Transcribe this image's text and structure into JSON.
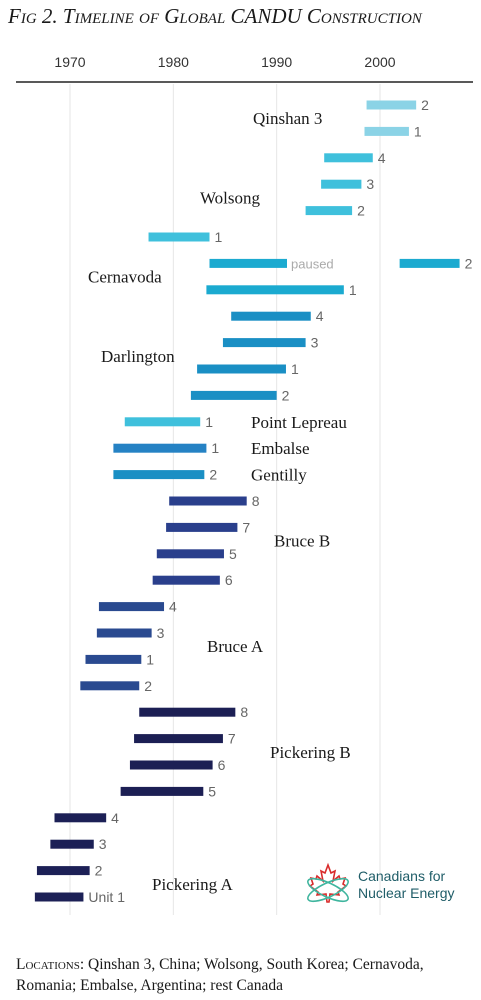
{
  "chart_data": {
    "type": "timeline",
    "title": "Fig 2. Timeline of Global CANDU Construction",
    "x_ticks": [
      1970,
      1980,
      1990,
      2000
    ],
    "xlim": [
      1964,
      2009
    ],
    "colors": {
      "qinshan": "#8bd3e6",
      "wolsong": "#3fc0dc",
      "cernavoda": "#1baad0",
      "darlington": "#1a8fc4",
      "lepreau_group": "#2582c4",
      "bruce_b": "#2a3f8c",
      "bruce_a": "#2a4a90",
      "pickering_b": "#1c1f54",
      "pickering_a": "#1c2056"
    },
    "plants": [
      {
        "name": "Qinshan 3",
        "color": "qinshan",
        "units": [
          {
            "label": "2",
            "start": 1998.7,
            "end": 2003.5
          },
          {
            "label": "1",
            "start": 1998.5,
            "end": 2002.8
          }
        ]
      },
      {
        "name": "Wolsong",
        "color": "wolsong",
        "units": [
          {
            "label": "4",
            "start": 1994.6,
            "end": 1999.3
          },
          {
            "label": "3",
            "start": 1994.3,
            "end": 1998.2
          },
          {
            "label": "2",
            "start": 1992.8,
            "end": 1997.3
          },
          {
            "label": "1",
            "start": 1977.6,
            "end": 1983.5
          }
        ]
      },
      {
        "name": "Cernavoda",
        "color": "cernavoda",
        "units": [
          {
            "label": "2",
            "start": 1983.5,
            "end": 1991.0,
            "note": "paused",
            "resume_start": 2001.9,
            "resume_end": 2007.7
          },
          {
            "label": "1",
            "start": 1983.2,
            "end": 1996.5
          }
        ]
      },
      {
        "name": "Darlington",
        "color": "darlington",
        "units": [
          {
            "label": "4",
            "start": 1985.6,
            "end": 1993.3
          },
          {
            "label": "3",
            "start": 1984.8,
            "end": 1992.8
          },
          {
            "label": "1",
            "start": 1982.3,
            "end": 1990.9
          },
          {
            "label": "2",
            "start": 1981.7,
            "end": 1990.0
          }
        ]
      },
      {
        "name": "Point Lepreau",
        "color": "wolsong",
        "units": [
          {
            "label": "1",
            "start": 1975.3,
            "end": 1982.6
          }
        ]
      },
      {
        "name": "Embalse",
        "color": "lepreau_group",
        "units": [
          {
            "label": "1",
            "start": 1974.2,
            "end": 1983.2
          }
        ]
      },
      {
        "name": "Gentilly",
        "color": "darlington",
        "units": [
          {
            "label": "2",
            "start": 1974.2,
            "end": 1983.0
          }
        ]
      },
      {
        "name": "Bruce B",
        "color": "bruce_b",
        "units": [
          {
            "label": "8",
            "start": 1979.6,
            "end": 1987.1
          },
          {
            "label": "7",
            "start": 1979.3,
            "end": 1986.2
          },
          {
            "label": "5",
            "start": 1978.4,
            "end": 1984.9
          },
          {
            "label": "6",
            "start": 1978.0,
            "end": 1984.5
          }
        ]
      },
      {
        "name": "Bruce A",
        "color": "bruce_a",
        "units": [
          {
            "label": "4",
            "start": 1972.8,
            "end": 1979.1
          },
          {
            "label": "3",
            "start": 1972.6,
            "end": 1977.9
          },
          {
            "label": "1",
            "start": 1971.5,
            "end": 1976.9
          },
          {
            "label": "2",
            "start": 1971.0,
            "end": 1976.7
          }
        ]
      },
      {
        "name": "Pickering B",
        "color": "pickering_b",
        "units": [
          {
            "label": "8",
            "start": 1976.7,
            "end": 1986.0
          },
          {
            "label": "7",
            "start": 1976.2,
            "end": 1984.8
          },
          {
            "label": "6",
            "start": 1975.8,
            "end": 1983.8
          },
          {
            "label": "5",
            "start": 1974.9,
            "end": 1982.9
          }
        ]
      },
      {
        "name": "Pickering A",
        "color": "pickering_a",
        "units": [
          {
            "label": "4",
            "start": 1968.5,
            "end": 1973.5
          },
          {
            "label": "3",
            "start": 1968.1,
            "end": 1972.3
          },
          {
            "label": "2",
            "start": 1966.8,
            "end": 1971.9
          },
          {
            "label": "Unit 1",
            "start": 1966.6,
            "end": 1971.3
          }
        ]
      }
    ]
  },
  "logo": {
    "line1": "Canadians for",
    "line2": "Nuclear Energy",
    "leaf_color": "#d92b2b",
    "orbit_color": "#3fb59e"
  },
  "footnote": {
    "lead": "Locations:",
    "text": " Qinshan 3, China; Wolsong, South Korea; Cernavoda, Romania; Embalse, Argentina; rest Canada"
  }
}
